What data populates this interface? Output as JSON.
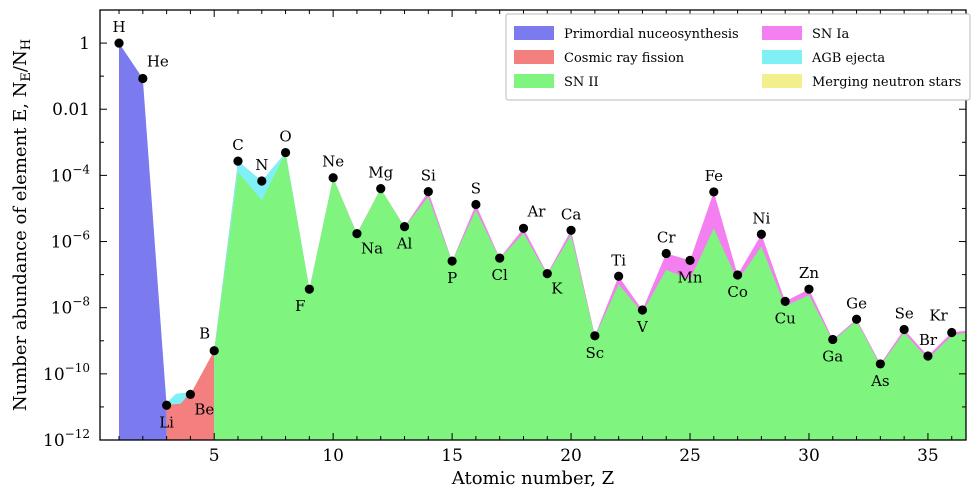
{
  "chart_data": {
    "type": "area",
    "xlabel": "Atomic number, Z",
    "ylabel": "Number abundance of element E, N",
    "ylabel_sub_E": "E",
    "ylabel_sep": "/N",
    "ylabel_sub_H": "H",
    "xlim": [
      0.2,
      36.6
    ],
    "ylim_log10": [
      -12,
      1
    ],
    "y_scale": "log",
    "x_ticks": [
      5,
      10,
      15,
      20,
      25,
      30,
      35
    ],
    "x_tick_labels": [
      "5",
      "10",
      "15",
      "20",
      "25",
      "30",
      "35"
    ],
    "y_ticks_log10": [
      0,
      -2,
      -4,
      -6,
      -8,
      -10,
      -12
    ],
    "y_tick_labels": [
      {
        "base": "1",
        "exp": ""
      },
      {
        "base": "0.01",
        "exp": ""
      },
      {
        "base": "10",
        "exp": "−4"
      },
      {
        "base": "10",
        "exp": "−6"
      },
      {
        "base": "10",
        "exp": "−8"
      },
      {
        "base": "10",
        "exp": "−10"
      },
      {
        "base": "10",
        "exp": "−12"
      }
    ],
    "legend_position": "top-right",
    "legend": [
      {
        "name": "Primordial nuceosynthesis",
        "color": "#7b7bef"
      },
      {
        "name": "Cosmic ray fission",
        "color": "#f47f7f"
      },
      {
        "name": "SN II",
        "color": "#7ff57f"
      },
      {
        "name": "SN Ia",
        "color": "#f47ff0"
      },
      {
        "name": "AGB ejecta",
        "color": "#7ff0f5"
      },
      {
        "name": "Merging neutron stars",
        "color": "#f2ef8c"
      }
    ],
    "elements": [
      {
        "z": 1,
        "symbol": "H",
        "log10_abundance": 0
      },
      {
        "z": 2,
        "symbol": "He",
        "log10_abundance": -1.07
      },
      {
        "z": 3,
        "symbol": "Li",
        "log10_abundance": -10.95
      },
      {
        "z": 4,
        "symbol": "Be",
        "log10_abundance": -10.62
      },
      {
        "z": 5,
        "symbol": "B",
        "log10_abundance": -9.3
      },
      {
        "z": 6,
        "symbol": "C",
        "log10_abundance": -3.57
      },
      {
        "z": 7,
        "symbol": "N",
        "log10_abundance": -4.17
      },
      {
        "z": 8,
        "symbol": "O",
        "log10_abundance": -3.31
      },
      {
        "z": 9,
        "symbol": "F",
        "log10_abundance": -7.44
      },
      {
        "z": 10,
        "symbol": "Ne",
        "log10_abundance": -4.07
      },
      {
        "z": 11,
        "symbol": "Na",
        "log10_abundance": -5.76
      },
      {
        "z": 12,
        "symbol": "Mg",
        "log10_abundance": -4.4
      },
      {
        "z": 13,
        "symbol": "Al",
        "log10_abundance": -5.55
      },
      {
        "z": 14,
        "symbol": "Si",
        "log10_abundance": -4.49
      },
      {
        "z": 15,
        "symbol": "P",
        "log10_abundance": -6.59
      },
      {
        "z": 16,
        "symbol": "S",
        "log10_abundance": -4.88
      },
      {
        "z": 17,
        "symbol": "Cl",
        "log10_abundance": -6.5
      },
      {
        "z": 18,
        "symbol": "Ar",
        "log10_abundance": -5.6
      },
      {
        "z": 19,
        "symbol": "K",
        "log10_abundance": -6.97
      },
      {
        "z": 20,
        "symbol": "Ca",
        "log10_abundance": -5.66
      },
      {
        "z": 21,
        "symbol": "Sc",
        "log10_abundance": -8.85
      },
      {
        "z": 22,
        "symbol": "Ti",
        "log10_abundance": -7.05
      },
      {
        "z": 23,
        "symbol": "V",
        "log10_abundance": -8.07
      },
      {
        "z": 24,
        "symbol": "Cr",
        "log10_abundance": -6.36
      },
      {
        "z": 25,
        "symbol": "Mn",
        "log10_abundance": -6.57
      },
      {
        "z": 26,
        "symbol": "Fe",
        "log10_abundance": -4.5
      },
      {
        "z": 27,
        "symbol": "Co",
        "log10_abundance": -7.01
      },
      {
        "z": 28,
        "symbol": "Ni",
        "log10_abundance": -5.78
      },
      {
        "z": 29,
        "symbol": "Cu",
        "log10_abundance": -7.81
      },
      {
        "z": 30,
        "symbol": "Zn",
        "log10_abundance": -7.44
      },
      {
        "z": 31,
        "symbol": "Ga",
        "log10_abundance": -8.96
      },
      {
        "z": 32,
        "symbol": "Ge",
        "log10_abundance": -8.35
      },
      {
        "z": 33,
        "symbol": "As",
        "log10_abundance": -9.7
      },
      {
        "z": 34,
        "symbol": "Se",
        "log10_abundance": -8.66
      },
      {
        "z": 35,
        "symbol": "Br",
        "log10_abundance": -9.46
      },
      {
        "z": 36,
        "symbol": "Kr",
        "log10_abundance": -8.75
      }
    ],
    "label_placement": {
      "H": "above",
      "He": "above-right",
      "Li": "below",
      "Be": "below-right",
      "B": "above-left",
      "C": "above",
      "N": "above",
      "O": "above",
      "F": "below-left",
      "Ne": "above",
      "Na": "below-right",
      "Mg": "above",
      "Al": "below",
      "Si": "above",
      "P": "below",
      "S": "above",
      "Cl": "below",
      "Ar": "above-right",
      "K": "below-right",
      "Ca": "above",
      "Sc": "below",
      "Ti": "above",
      "V": "below",
      "Cr": "above",
      "Mn": "below",
      "Fe": "above",
      "Co": "below",
      "Ni": "above",
      "Cu": "below",
      "Zn": "above",
      "Ga": "below",
      "Ge": "above",
      "As": "below",
      "Se": "above",
      "Br": "above",
      "Kr": "above-left"
    },
    "bands": {
      "primordial": {
        "color": "#7b7bef",
        "z_range": [
          1,
          3
        ],
        "z_values": [
          1,
          2,
          3
        ],
        "log10_top": [
          0,
          -1.07,
          -10.95
        ]
      },
      "cosmic_ray": {
        "color": "#f47f7f",
        "z_range": [
          3,
          5
        ],
        "log10_top": [
          -10.95,
          -10.62,
          -9.3
        ]
      },
      "sn2": {
        "color": "#7ff57f",
        "z_range": [
          5,
          36.6
        ],
        "log10_top": [
          -9.3,
          -3.9,
          -4.75,
          -3.31,
          -7.44,
          -4.07,
          -5.78,
          -4.4,
          -5.56,
          -4.65,
          -6.6,
          -5.05,
          -6.52,
          -5.75,
          -7.0,
          -5.8,
          -8.88,
          -7.3,
          -8.15,
          -6.85,
          -7.15,
          -5.6,
          -7.18,
          -6.15,
          -7.95,
          -7.62,
          -9.0,
          -8.4,
          -9.75,
          -8.75,
          -9.55,
          -8.85
        ]
      },
      "sn1a": {
        "color": "#f47ff0",
        "z_range": [
          14,
          30
        ]
      },
      "agb": {
        "color": "#7ff0f5",
        "z_range": [
          2,
          8
        ]
      },
      "neutron_stars": {
        "color": "#f2ef8c",
        "z_range": [
          26,
          36
        ]
      }
    }
  }
}
